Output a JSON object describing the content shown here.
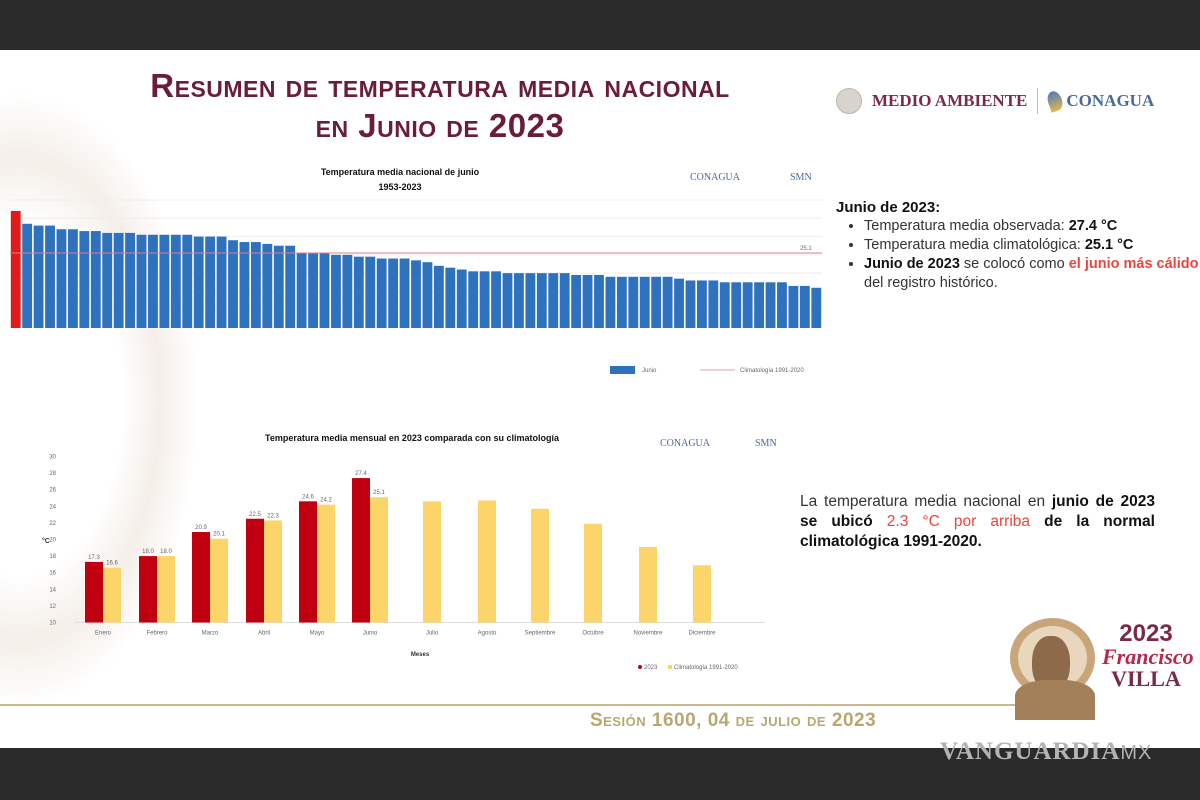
{
  "title_line1": "Resumen de temperatura media nacional",
  "title_line2": "en Junio de 2023",
  "logos": {
    "medio_ambiente": "MEDIO AMBIENTE",
    "conagua": "CONAGUA",
    "smn": "SMN"
  },
  "info": {
    "heading": "Junio de 2023:",
    "items": [
      {
        "label": "Temperatura media observada: ",
        "value": "27.4 °C"
      },
      {
        "label": "Temperatura media climatológica: ",
        "value": "25.1 °C"
      }
    ],
    "record": {
      "bold": "Junio de 2023",
      "mid": " se colocó como ",
      "red": "el junio más cálido",
      "end": " del registro histórico."
    }
  },
  "note": {
    "p1": "La temperatura media nacional en ",
    "bold1": "junio de 2023 se ubicó ",
    "red": "2.3 °C por arriba",
    "bold2": " de la normal climatológica 1991-2020."
  },
  "footer": "Sesión 1600, 04 de julio de 2023",
  "villa_logo": {
    "year": "2023",
    "name1": "Francisco",
    "name2": "VILLA"
  },
  "watermark": {
    "brand": "VANGUARDIA",
    "suffix": "MX"
  },
  "colors": {
    "title": "#6b1d35",
    "bar_blue": "#2e72bd",
    "bar_record": "#e11b1b",
    "bar_2023": "#c00010",
    "bar_clim": "#fcd56a",
    "accent_red": "#e8453c"
  },
  "chart_data": [
    {
      "type": "bar",
      "title": "Temperatura media nacional de junio",
      "subtitle": "1953-2023",
      "sorted": "descending",
      "highlight": {
        "label": "2023",
        "value": 27.4
      },
      "values": [
        27.4,
        26.7,
        26.6,
        26.6,
        26.4,
        26.4,
        26.3,
        26.3,
        26.2,
        26.2,
        26.2,
        26.1,
        26.1,
        26.1,
        26.1,
        26.1,
        26.0,
        26.0,
        26.0,
        25.8,
        25.7,
        25.7,
        25.6,
        25.5,
        25.5,
        25.1,
        25.1,
        25.1,
        25.0,
        25.0,
        24.9,
        24.9,
        24.8,
        24.8,
        24.8,
        24.7,
        24.6,
        24.4,
        24.3,
        24.2,
        24.1,
        24.1,
        24.1,
        24.0,
        24.0,
        24.0,
        24.0,
        24.0,
        24.0,
        23.9,
        23.9,
        23.9,
        23.8,
        23.8,
        23.8,
        23.8,
        23.8,
        23.8,
        23.7,
        23.6,
        23.6,
        23.6,
        23.5,
        23.5,
        23.5,
        23.5,
        23.5,
        23.5,
        23.3,
        23.3,
        23.2
      ],
      "reference_line": {
        "value": 25.1,
        "label": "25.1"
      },
      "ylim": [
        21,
        28
      ],
      "grid": true,
      "legend": [
        "Junio",
        "Climatología 1991-2020"
      ],
      "legend_position": "bottom-right"
    },
    {
      "type": "bar",
      "title": "Temperatura media mensual en 2023 comparada con su climatología",
      "xlabel": "Meses",
      "ylabel": "°C",
      "ylim": [
        10,
        30
      ],
      "yticks": [
        "10",
        "12",
        "14",
        "16",
        "18",
        "20",
        "22",
        "24",
        "26",
        "28",
        "30"
      ],
      "categories": [
        "Enero",
        "Febrero",
        "Marzo",
        "Abril",
        "Mayo",
        "Junio",
        "Julio",
        "Agosto",
        "Septiembre",
        "Octubre",
        "Noviembre",
        "Diciembre"
      ],
      "series": [
        {
          "name": "2023",
          "values": [
            17.3,
            18.0,
            20.9,
            22.5,
            24.6,
            27.4,
            null,
            null,
            null,
            null,
            null,
            null
          ],
          "labels": [
            "17.3",
            "18.0",
            "20.9",
            "22.5",
            "24.6",
            "27.4"
          ]
        },
        {
          "name": "Climatología 1991-2020",
          "values": [
            16.6,
            18.0,
            20.1,
            22.3,
            24.2,
            25.1,
            24.6,
            24.7,
            23.7,
            21.9,
            19.1,
            16.9
          ],
          "labels": [
            "16.6",
            "18.0",
            "20.1",
            "22.3",
            "24.2",
            "25.1"
          ]
        }
      ],
      "legend_position": "bottom-right"
    }
  ]
}
